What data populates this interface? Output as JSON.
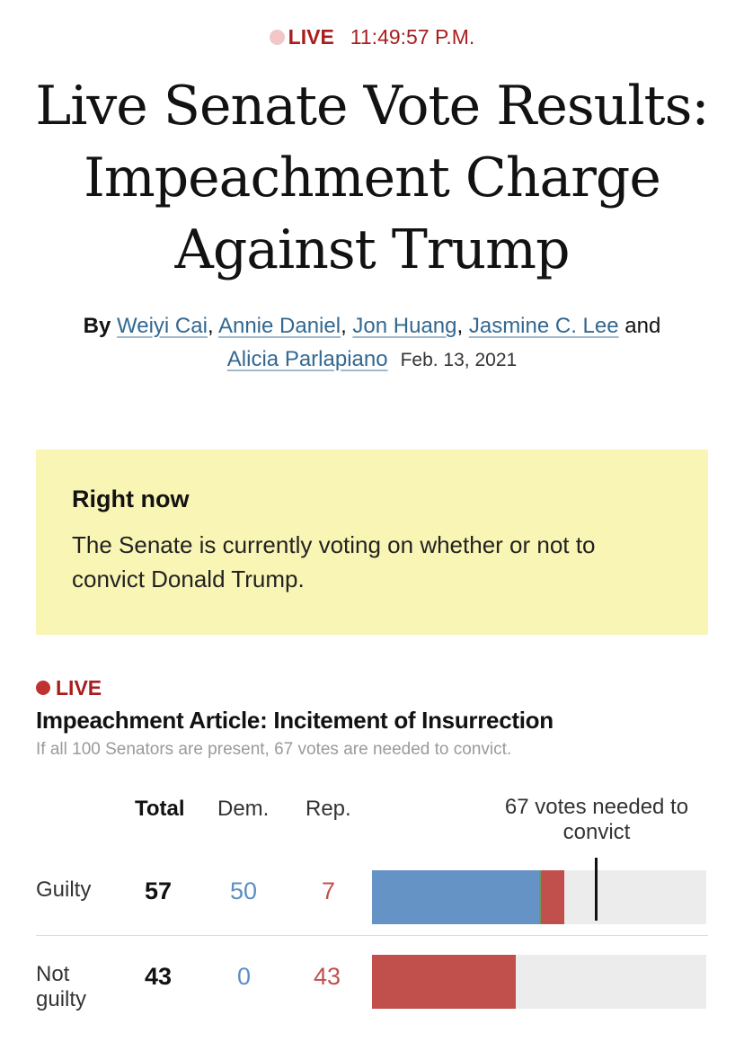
{
  "status": {
    "live_label": "LIVE",
    "time": "11:49:57 P.M."
  },
  "headline": "Live Senate Vote Results: Impeachment Charge Against Trump",
  "byline": {
    "prefix": "By",
    "authors": [
      "Weiyi Cai",
      "Annie Daniel",
      "Jon Huang",
      "Jasmine C. Lee",
      "Alicia Parlapiano"
    ],
    "sep": ",",
    "and": "and",
    "date": "Feb. 13, 2021"
  },
  "right_now": {
    "title": "Right now",
    "text": "The Senate is currently voting on whether or not to convict Donald Trump."
  },
  "results": {
    "live_label": "LIVE",
    "title": "Impeachment Article: Incitement of Insurrection",
    "note": "If all 100 Senators are present, 67 votes are needed to convict.",
    "headers": {
      "total": "Total",
      "dem": "Dem.",
      "rep": "Rep."
    },
    "threshold_label": "67 votes needed to convict",
    "threshold_value": 67,
    "max_value": 100,
    "rows": [
      {
        "label": "Guilty",
        "total": "57",
        "dem": "50",
        "rep": "7",
        "dem_votes": 50,
        "other_votes": 0.5,
        "rep_votes": 7
      },
      {
        "label": "Not guilty",
        "total": "43",
        "dem": "0",
        "rep": "43",
        "dem_votes": 0,
        "other_votes": 0,
        "rep_votes": 43
      }
    ]
  },
  "colors": {
    "live_red": "#a81e1e",
    "link_blue": "#326891",
    "dem_blue": "#6593c5",
    "rep_red": "#c1504d",
    "highlight_yellow": "#f9f5b4",
    "bar_track": "#ececec"
  }
}
